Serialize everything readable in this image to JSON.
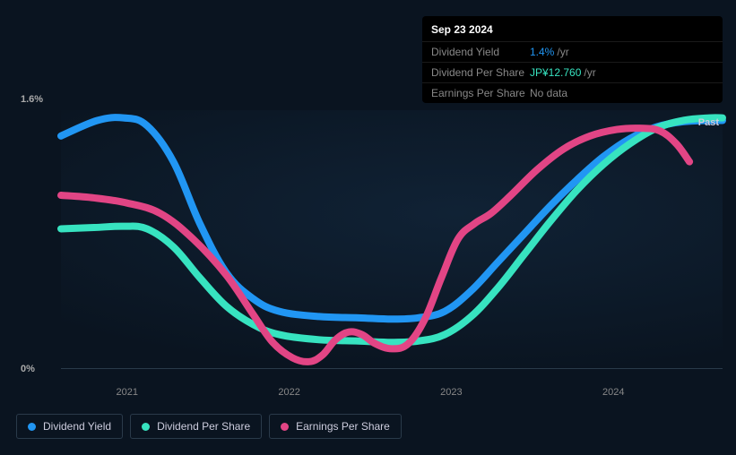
{
  "tooltip": {
    "date": "Sep 23 2024",
    "rows": [
      {
        "label": "Dividend Yield",
        "value": "1.4%",
        "unit": "/yr",
        "color": "#2196f3"
      },
      {
        "label": "Dividend Per Share",
        "value": "JP¥12.760",
        "unit": "/yr",
        "color": "#37e3c0"
      },
      {
        "label": "Earnings Per Share",
        "value": "No data",
        "unit": "",
        "color": "#888888"
      }
    ]
  },
  "chart": {
    "type": "line",
    "background_color": "#0a1420",
    "grid_color": "#2a3a4a",
    "text_color": "#aaaaaa",
    "past_label": "Past",
    "y_axis": {
      "min": 0,
      "max": 1.6,
      "labels": [
        {
          "value": "1.6%",
          "pos": 0
        },
        {
          "value": "0%",
          "pos": 1
        }
      ]
    },
    "x_axis": {
      "labels": [
        {
          "value": "2021",
          "pos": 0.1
        },
        {
          "value": "2022",
          "pos": 0.345
        },
        {
          "value": "2023",
          "pos": 0.59
        },
        {
          "value": "2024",
          "pos": 0.835
        }
      ]
    },
    "series": [
      {
        "name": "Dividend Yield",
        "color": "#2196f3",
        "line_width": 2.5,
        "points": [
          [
            0.0,
            0.9
          ],
          [
            0.055,
            0.96
          ],
          [
            0.095,
            0.97
          ],
          [
            0.13,
            0.94
          ],
          [
            0.17,
            0.8
          ],
          [
            0.21,
            0.56
          ],
          [
            0.25,
            0.37
          ],
          [
            0.29,
            0.27
          ],
          [
            0.33,
            0.22
          ],
          [
            0.39,
            0.2
          ],
          [
            0.45,
            0.195
          ],
          [
            0.5,
            0.19
          ],
          [
            0.54,
            0.195
          ],
          [
            0.58,
            0.22
          ],
          [
            0.62,
            0.3
          ],
          [
            0.66,
            0.41
          ],
          [
            0.7,
            0.52
          ],
          [
            0.74,
            0.63
          ],
          [
            0.78,
            0.73
          ],
          [
            0.82,
            0.82
          ],
          [
            0.86,
            0.89
          ],
          [
            0.9,
            0.935
          ],
          [
            0.94,
            0.955
          ],
          [
            0.98,
            0.96
          ],
          [
            1.0,
            0.96
          ]
        ]
      },
      {
        "name": "Dividend Per Share",
        "color": "#37e3c0",
        "line_width": 2.5,
        "points": [
          [
            0.0,
            0.54
          ],
          [
            0.05,
            0.545
          ],
          [
            0.095,
            0.55
          ],
          [
            0.13,
            0.54
          ],
          [
            0.17,
            0.47
          ],
          [
            0.21,
            0.35
          ],
          [
            0.25,
            0.24
          ],
          [
            0.29,
            0.17
          ],
          [
            0.33,
            0.13
          ],
          [
            0.39,
            0.11
          ],
          [
            0.45,
            0.105
          ],
          [
            0.5,
            0.1
          ],
          [
            0.54,
            0.105
          ],
          [
            0.58,
            0.13
          ],
          [
            0.62,
            0.2
          ],
          [
            0.66,
            0.31
          ],
          [
            0.7,
            0.44
          ],
          [
            0.74,
            0.57
          ],
          [
            0.78,
            0.69
          ],
          [
            0.82,
            0.79
          ],
          [
            0.86,
            0.87
          ],
          [
            0.9,
            0.93
          ],
          [
            0.94,
            0.96
          ],
          [
            0.98,
            0.97
          ],
          [
            1.0,
            0.97
          ]
        ]
      },
      {
        "name": "Earnings Per Share",
        "color": "#e24585",
        "line_width": 2.5,
        "points": [
          [
            0.0,
            0.67
          ],
          [
            0.05,
            0.66
          ],
          [
            0.1,
            0.64
          ],
          [
            0.15,
            0.6
          ],
          [
            0.2,
            0.5
          ],
          [
            0.25,
            0.36
          ],
          [
            0.29,
            0.21
          ],
          [
            0.32,
            0.1
          ],
          [
            0.35,
            0.04
          ],
          [
            0.375,
            0.025
          ],
          [
            0.395,
            0.05
          ],
          [
            0.415,
            0.11
          ],
          [
            0.435,
            0.14
          ],
          [
            0.455,
            0.13
          ],
          [
            0.475,
            0.095
          ],
          [
            0.5,
            0.075
          ],
          [
            0.525,
            0.095
          ],
          [
            0.55,
            0.19
          ],
          [
            0.575,
            0.35
          ],
          [
            0.6,
            0.5
          ],
          [
            0.625,
            0.56
          ],
          [
            0.65,
            0.6
          ],
          [
            0.68,
            0.67
          ],
          [
            0.72,
            0.77
          ],
          [
            0.76,
            0.85
          ],
          [
            0.8,
            0.9
          ],
          [
            0.84,
            0.925
          ],
          [
            0.875,
            0.93
          ],
          [
            0.905,
            0.92
          ],
          [
            0.93,
            0.87
          ],
          [
            0.95,
            0.8
          ]
        ]
      }
    ]
  },
  "legend": {
    "items": [
      {
        "label": "Dividend Yield",
        "color": "#2196f3"
      },
      {
        "label": "Dividend Per Share",
        "color": "#37e3c0"
      },
      {
        "label": "Earnings Per Share",
        "color": "#e24585"
      }
    ]
  }
}
